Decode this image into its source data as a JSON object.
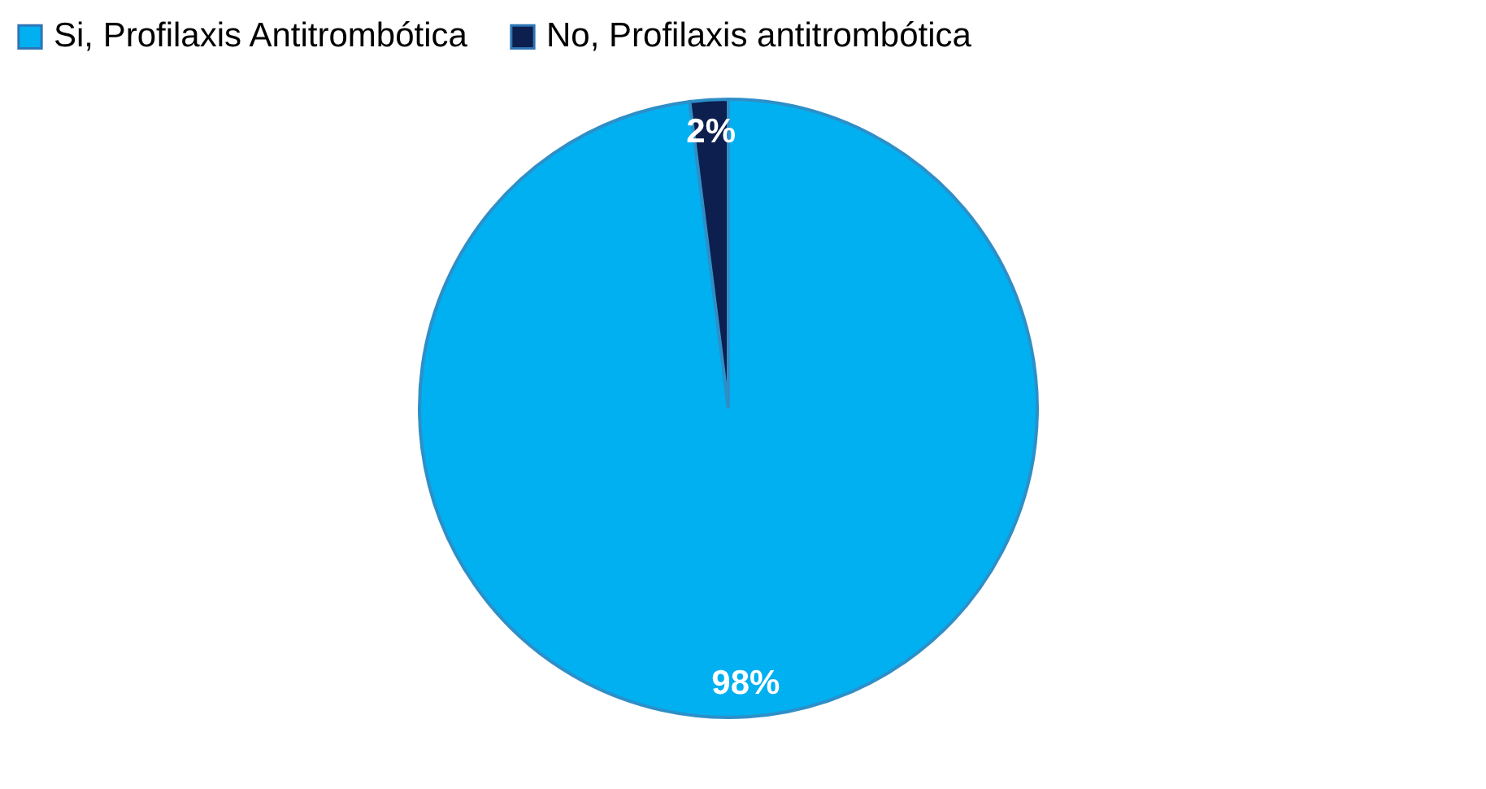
{
  "chart_data": {
    "type": "pie",
    "categories": [
      "Si, Profilaxis Antitrombótica",
      "No, Profilaxis antitrombótica"
    ],
    "values": [
      98,
      2
    ],
    "colors": [
      "#00b0f0",
      "#0c1f4e"
    ],
    "value_labels": [
      "98%",
      "2%"
    ],
    "legend": "top"
  }
}
